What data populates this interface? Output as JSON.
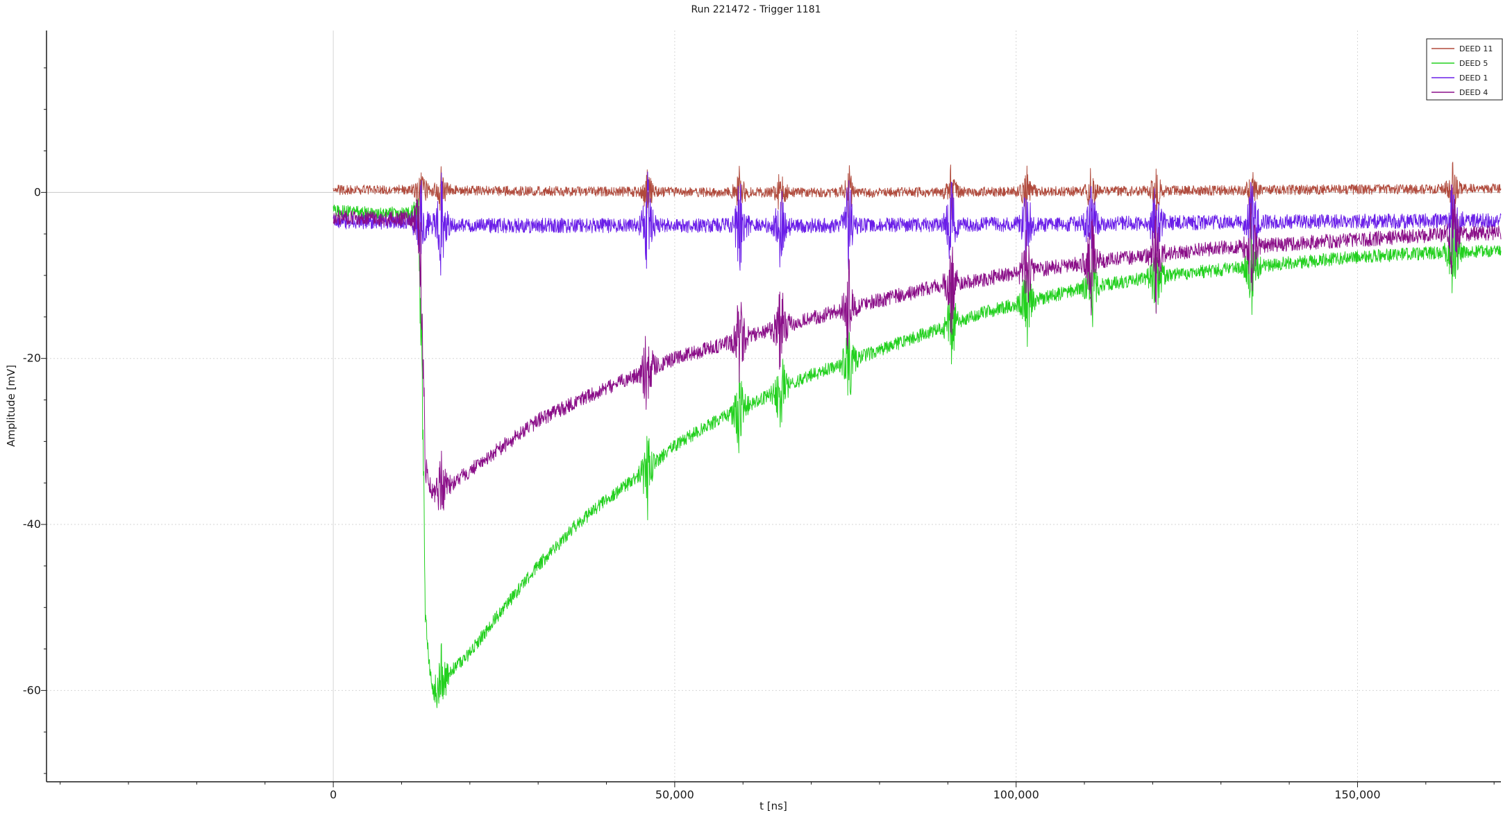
{
  "chart_data": {
    "type": "line",
    "title": "Run 221472 - Trigger 1181",
    "xlabel": "t [ns]",
    "ylabel": "Amplitude [mV]",
    "xlim": [
      -42000,
      171000
    ],
    "ylim": [
      -71,
      19.5
    ],
    "x_ticks": [
      0,
      50000,
      100000,
      150000
    ],
    "x_tick_labels": [
      "0",
      "50,000",
      "100,000",
      "150,000"
    ],
    "y_ticks": [
      0,
      -20,
      -40,
      -60
    ],
    "y_tick_labels": [
      "0",
      "-20",
      "-40",
      "-60"
    ],
    "grid": true,
    "legend": "top-right",
    "series": [
      {
        "name": "DEED 11",
        "color": "#b04a3c",
        "points": [
          [
            0,
            0.3
          ],
          [
            10000,
            0.3
          ],
          [
            20000,
            0.2
          ],
          [
            40000,
            0.1
          ],
          [
            60000,
            0.0
          ],
          [
            80000,
            0.0
          ],
          [
            100000,
            0.1
          ],
          [
            120000,
            0.2
          ],
          [
            140000,
            0.3
          ],
          [
            160000,
            0.4
          ],
          [
            171000,
            0.5
          ]
        ],
        "noise": 0.6
      },
      {
        "name": "DEED 5",
        "color": "#22d01e",
        "points": [
          [
            0,
            -2.3
          ],
          [
            12500,
            -2.6
          ],
          [
            13000,
            -20
          ],
          [
            13500,
            -52
          ],
          [
            14500,
            -60
          ],
          [
            15500,
            -59.5
          ],
          [
            17500,
            -57.5
          ],
          [
            20000,
            -55.5
          ],
          [
            25000,
            -50
          ],
          [
            30000,
            -45
          ],
          [
            35000,
            -40.5
          ],
          [
            40000,
            -37
          ],
          [
            45000,
            -34
          ],
          [
            50000,
            -30.5
          ],
          [
            55000,
            -28
          ],
          [
            60000,
            -26
          ],
          [
            65000,
            -24
          ],
          [
            70000,
            -22
          ],
          [
            75000,
            -20.5
          ],
          [
            80000,
            -19
          ],
          [
            85000,
            -17.5
          ],
          [
            90000,
            -16
          ],
          [
            95000,
            -14.5
          ],
          [
            100000,
            -13.5
          ],
          [
            110000,
            -11.5
          ],
          [
            120000,
            -10.2
          ],
          [
            130000,
            -9.3
          ],
          [
            140000,
            -8.5
          ],
          [
            150000,
            -7.8
          ],
          [
            160000,
            -7.3
          ],
          [
            171000,
            -7.0
          ]
        ],
        "noise": 0.8
      },
      {
        "name": "DEED 1",
        "color": "#6a1ee8",
        "points": [
          [
            0,
            -3.5
          ],
          [
            10000,
            -3.6
          ],
          [
            20000,
            -4.0
          ],
          [
            30000,
            -4.0
          ],
          [
            50000,
            -4.0
          ],
          [
            70000,
            -4.0
          ],
          [
            90000,
            -3.9
          ],
          [
            110000,
            -3.8
          ],
          [
            130000,
            -3.6
          ],
          [
            150000,
            -3.5
          ],
          [
            171000,
            -3.4
          ]
        ],
        "noise": 0.9
      },
      {
        "name": "DEED 4",
        "color": "#8a0e88",
        "points": [
          [
            0,
            -3.0
          ],
          [
            12500,
            -3.2
          ],
          [
            13000,
            -15
          ],
          [
            13500,
            -33
          ],
          [
            14500,
            -36.2
          ],
          [
            16000,
            -36
          ],
          [
            20000,
            -33.5
          ],
          [
            25000,
            -30.5
          ],
          [
            30000,
            -27.5
          ],
          [
            35000,
            -25.5
          ],
          [
            40000,
            -23.5
          ],
          [
            45000,
            -21.8
          ],
          [
            50000,
            -20
          ],
          [
            55000,
            -18.8
          ],
          [
            60000,
            -17.5
          ],
          [
            65000,
            -16.3
          ],
          [
            70000,
            -15.2
          ],
          [
            75000,
            -14
          ],
          [
            80000,
            -13
          ],
          [
            85000,
            -12
          ],
          [
            90000,
            -11
          ],
          [
            95000,
            -10.5
          ],
          [
            100000,
            -9.7
          ],
          [
            110000,
            -8.5
          ],
          [
            120000,
            -7.5
          ],
          [
            130000,
            -6.7
          ],
          [
            140000,
            -6.2
          ],
          [
            150000,
            -5.7
          ],
          [
            160000,
            -5.2
          ],
          [
            171000,
            -4.8
          ]
        ],
        "noise": 0.9
      }
    ],
    "burst_times": [
      12800,
      15800,
      46000,
      59500,
      65500,
      75500,
      90500,
      101500,
      111000,
      120500,
      134500,
      164000
    ]
  }
}
